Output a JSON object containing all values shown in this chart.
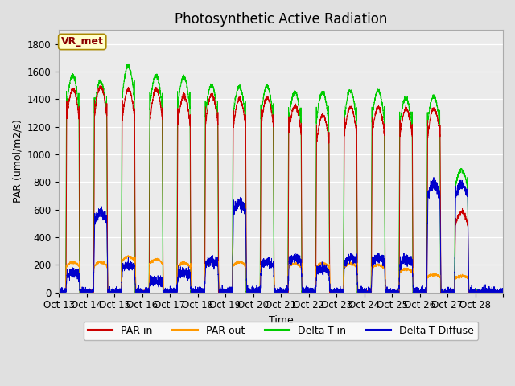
{
  "title": "Photosynthetic Active Radiation",
  "ylabel": "PAR (umol/m2/s)",
  "xlabel": "Time",
  "legend_labels": [
    "PAR in",
    "PAR out",
    "Delta-T in",
    "Delta-T Diffuse"
  ],
  "legend_colors": [
    "#cc0000",
    "#ff9900",
    "#00cc00",
    "#0000cc"
  ],
  "line_colors": {
    "PAR_in": "#cc0000",
    "PAR_out": "#ff9900",
    "Delta_T_in": "#00cc00",
    "Delta_T_Diffuse": "#0000cc"
  },
  "ylim": [
    0,
    1900
  ],
  "background_color": "#e0e0e0",
  "plot_bg_color": "#ebebeb",
  "annotation_text": "VR_met",
  "annotation_bg": "#ffffcc",
  "annotation_border": "#aa8800",
  "annotation_text_color": "#8b0000",
  "x_tick_labels": [
    "Oct 13",
    "Oct 14",
    "Oct 15",
    "Oct 16",
    "Oct 17",
    "Oct 18",
    "Oct 19",
    "Oct 20",
    "Oct 21",
    "Oct 22",
    "Oct 23",
    "Oct 24",
    "Oct 25",
    "Oct 26",
    "Oct 27",
    "Oct 28",
    ""
  ],
  "ytick_values": [
    0,
    200,
    400,
    600,
    800,
    1000,
    1200,
    1400,
    1600,
    1800
  ],
  "days": 16,
  "points_per_day": 288,
  "peak_par_in": [
    1470,
    1490,
    1470,
    1470,
    1420,
    1430,
    1400,
    1410,
    1350,
    1280,
    1340,
    1340,
    1330,
    1330,
    580,
    0
  ],
  "peak_par_out": [
    220,
    220,
    260,
    240,
    215,
    220,
    220,
    215,
    210,
    210,
    210,
    200,
    170,
    130,
    120,
    0
  ],
  "peak_delta_in": [
    1570,
    1530,
    1640,
    1570,
    1560,
    1500,
    1490,
    1490,
    1450,
    1450,
    1460,
    1460,
    1410,
    1420,
    890,
    0
  ],
  "peak_delta_diffuse": [
    140,
    580,
    200,
    80,
    145,
    230,
    650,
    220,
    250,
    170,
    245,
    245,
    240,
    780,
    780,
    0
  ],
  "title_fontsize": 12,
  "label_fontsize": 9,
  "tick_fontsize": 8.5,
  "linewidth": 0.7
}
